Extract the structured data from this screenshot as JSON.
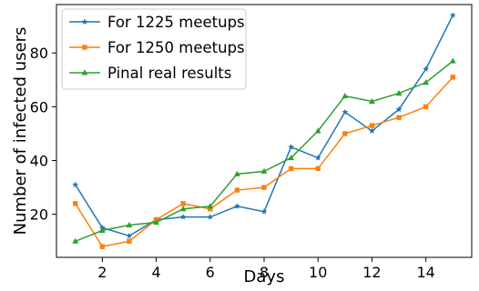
{
  "chart_data": {
    "type": "line",
    "xlabel": "Days",
    "ylabel": "Number of infected users",
    "xlim": [
      0.3,
      15.7
    ],
    "ylim": [
      4,
      98
    ],
    "xticks": [
      2,
      4,
      6,
      8,
      10,
      12,
      14
    ],
    "yticks": [
      20,
      40,
      60,
      80
    ],
    "grid": false,
    "legend_position": "top-left",
    "x": [
      1,
      2,
      3,
      4,
      5,
      6,
      7,
      8,
      9,
      10,
      11,
      12,
      13,
      14,
      15
    ],
    "series": [
      {
        "name": "For 1225 meetups",
        "color": "#1f77b4",
        "marker": "star",
        "values": [
          31,
          15,
          12,
          18,
          19,
          19,
          23,
          21,
          45,
          41,
          58,
          51,
          59,
          74,
          94
        ]
      },
      {
        "name": "For 1250 meetups",
        "color": "#ff7f0e",
        "marker": "square",
        "values": [
          24,
          8,
          10,
          18,
          24,
          22,
          29,
          30,
          37,
          37,
          50,
          53,
          56,
          60,
          71
        ]
      },
      {
        "name": "Pinal real results",
        "color": "#2ca02c",
        "marker": "triangle",
        "values": [
          10,
          14,
          16,
          17,
          22,
          23,
          35,
          36,
          41,
          51,
          64,
          62,
          65,
          69,
          77
        ]
      }
    ]
  }
}
